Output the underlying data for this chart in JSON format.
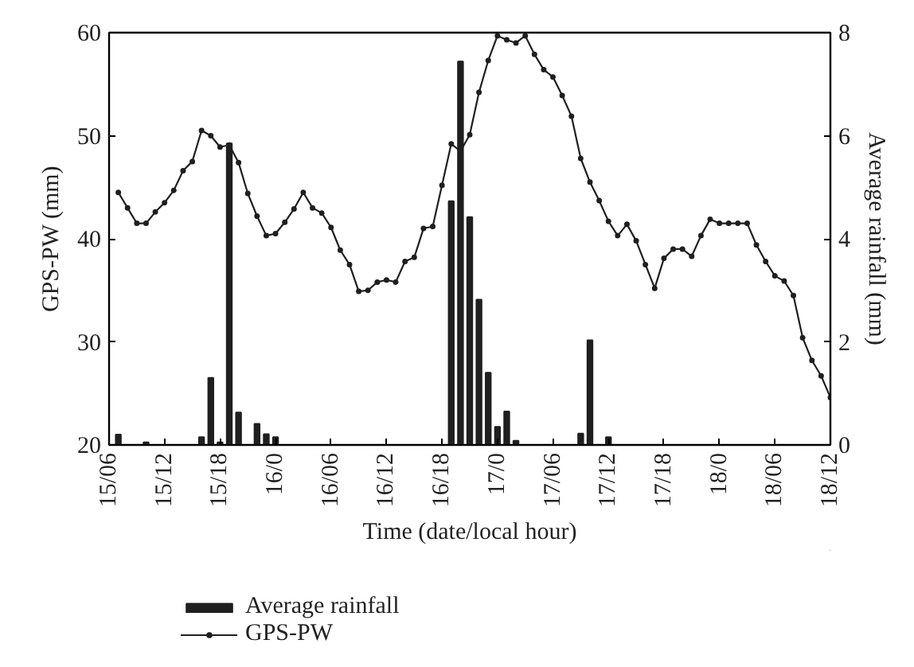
{
  "chart_data": {
    "type": "line",
    "xlabel": "Time (date/local hour)",
    "ylabel": "GPS-PW (mm)",
    "y2label": "Average rainfall (mm)",
    "categories": [
      "15/06",
      null,
      null,
      null,
      null,
      null,
      "15/12",
      null,
      null,
      null,
      null,
      null,
      "15/18",
      null,
      null,
      null,
      null,
      null,
      "16/0",
      null,
      null,
      null,
      null,
      null,
      "16/06",
      null,
      null,
      null,
      null,
      null,
      "16/12",
      null,
      null,
      null,
      null,
      null,
      "16/18",
      null,
      null,
      null,
      null,
      null,
      "17/0",
      null,
      null,
      null,
      null,
      null,
      "17/06",
      null,
      null,
      null,
      null,
      null,
      "17/12",
      null,
      null,
      null,
      null,
      null,
      "17/18",
      null,
      null,
      null,
      null,
      null,
      "18/0",
      null,
      null,
      null,
      null,
      null,
      "18/06",
      null,
      null,
      null,
      null,
      null,
      "18/12"
    ],
    "ylim": [
      20,
      60
    ],
    "yticks": [
      20,
      30,
      40,
      50,
      60
    ],
    "y2lim": [
      0,
      8
    ],
    "y2ticks": [
      0,
      2,
      4,
      6,
      8
    ],
    "legend": "bottom left",
    "marker": "circle",
    "line_style": "solid",
    "series": [
      {
        "name": "Average rainfall",
        "type": "bar",
        "axis": "y2",
        "color": "#1f1f1f",
        "values": [
          null,
          0.2,
          null,
          null,
          0.05,
          null,
          null,
          null,
          null,
          null,
          0.15,
          1.3,
          0.05,
          5.85,
          0.63,
          null,
          0.41,
          0.21,
          0.15,
          null,
          null,
          null,
          null,
          null,
          null,
          null,
          null,
          null,
          null,
          null,
          null,
          null,
          null,
          null,
          null,
          null,
          null,
          4.73,
          7.44,
          4.42,
          2.82,
          1.4,
          0.35,
          0.65,
          0.08,
          null,
          null,
          null,
          null,
          null,
          null,
          0.22,
          2.03,
          null,
          0.15,
          null,
          null,
          null,
          null,
          null,
          null,
          null,
          null,
          null,
          null,
          null,
          null,
          null,
          null,
          null,
          null,
          null,
          null,
          null,
          null,
          null,
          null,
          null,
          null
        ]
      },
      {
        "name": "GPS-PW",
        "color": "#1f1f1f",
        "values": [
          null,
          44.5,
          43,
          41.5,
          41.5,
          42.6,
          43.5,
          44.7,
          46.6,
          47.5,
          50.5,
          50,
          48.9,
          49.1,
          47.4,
          44.4,
          42.2,
          40.3,
          40.5,
          41.6,
          42.9,
          44.5,
          43,
          42.5,
          41.1,
          38.9,
          37.5,
          34.9,
          35,
          35.8,
          36,
          35.8,
          37.8,
          38.2,
          41,
          41.2,
          45.2,
          49.2,
          48.5,
          50.1,
          54.2,
          57.3,
          59.7,
          59.3,
          59,
          59.7,
          57.9,
          56.4,
          55.7,
          53.9,
          51.9,
          47.8,
          45.5,
          43.7,
          41.7,
          40.3,
          41.4,
          39.8,
          37.5,
          35.2,
          38.1,
          39,
          39,
          38.3,
          40.3,
          41.9,
          41.5,
          41.5,
          41.5,
          41.5,
          39.4,
          37.8,
          36.4,
          35.9,
          34.5,
          30.4,
          28.2,
          26.7,
          24.6
        ]
      }
    ]
  }
}
